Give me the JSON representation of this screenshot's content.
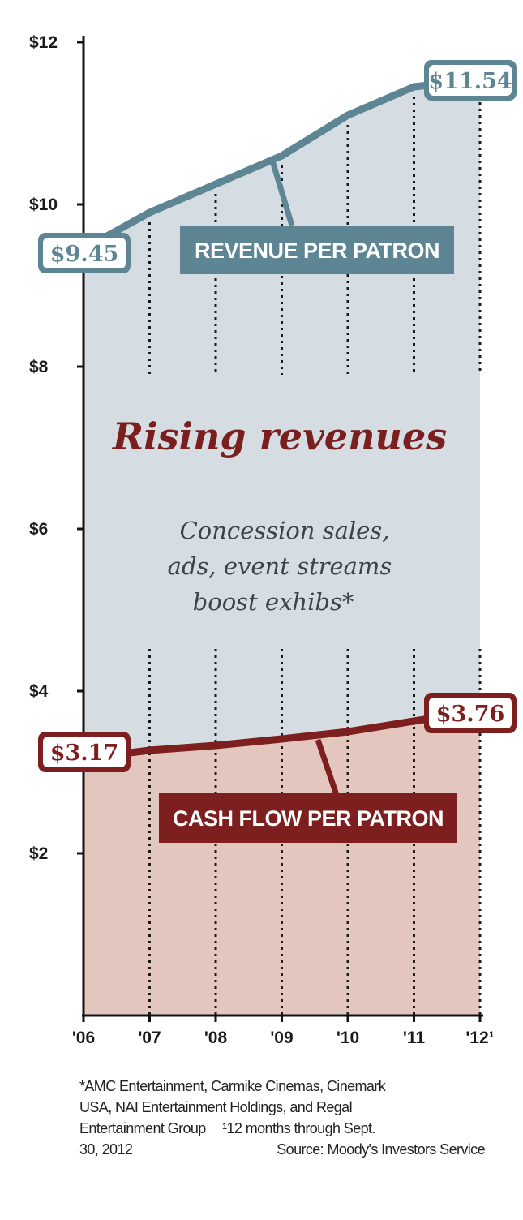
{
  "chart_data": {
    "type": "area",
    "title": "Rising revenues",
    "subtitle": [
      "Concession sales,",
      "ads, event streams",
      "boost exhibs*"
    ],
    "x": [
      "'06",
      "'07",
      "'08",
      "'09",
      "'10",
      "'11",
      "'12¹"
    ],
    "y_ticks": [
      "$12",
      "$10",
      "$8",
      "$6",
      "$4",
      "$2"
    ],
    "y_tick_values": [
      12,
      10,
      8,
      6,
      4,
      2
    ],
    "ylim": [
      0,
      12
    ],
    "grid": "dotted vertical lines",
    "series": [
      {
        "name": "REVENUE PER PATRON",
        "values": [
          9.45,
          9.9,
          10.25,
          10.6,
          11.1,
          11.45,
          11.54
        ],
        "start_label": "$9.45",
        "end_label": "$11.54",
        "color": "#5d8594",
        "fill": "#d5dde3"
      },
      {
        "name": "CASH FLOW PER PATRON",
        "values": [
          3.17,
          3.27,
          3.33,
          3.41,
          3.5,
          3.63,
          3.76
        ],
        "start_label": "$3.17",
        "end_label": "$3.76",
        "color": "#7e1f1f",
        "fill": "#e3c6be"
      }
    ]
  },
  "footnote": {
    "line1": "*AMC Entertainment, Carmike Cinemas, Cinemark",
    "line2": "USA, NAI Entertainment Holdings, and Regal",
    "line3": "Entertainment Group",
    "line3_note": "¹12 months through Sept.",
    "line4": "30, 2012",
    "source": "Source: Moody's Investors Service"
  }
}
